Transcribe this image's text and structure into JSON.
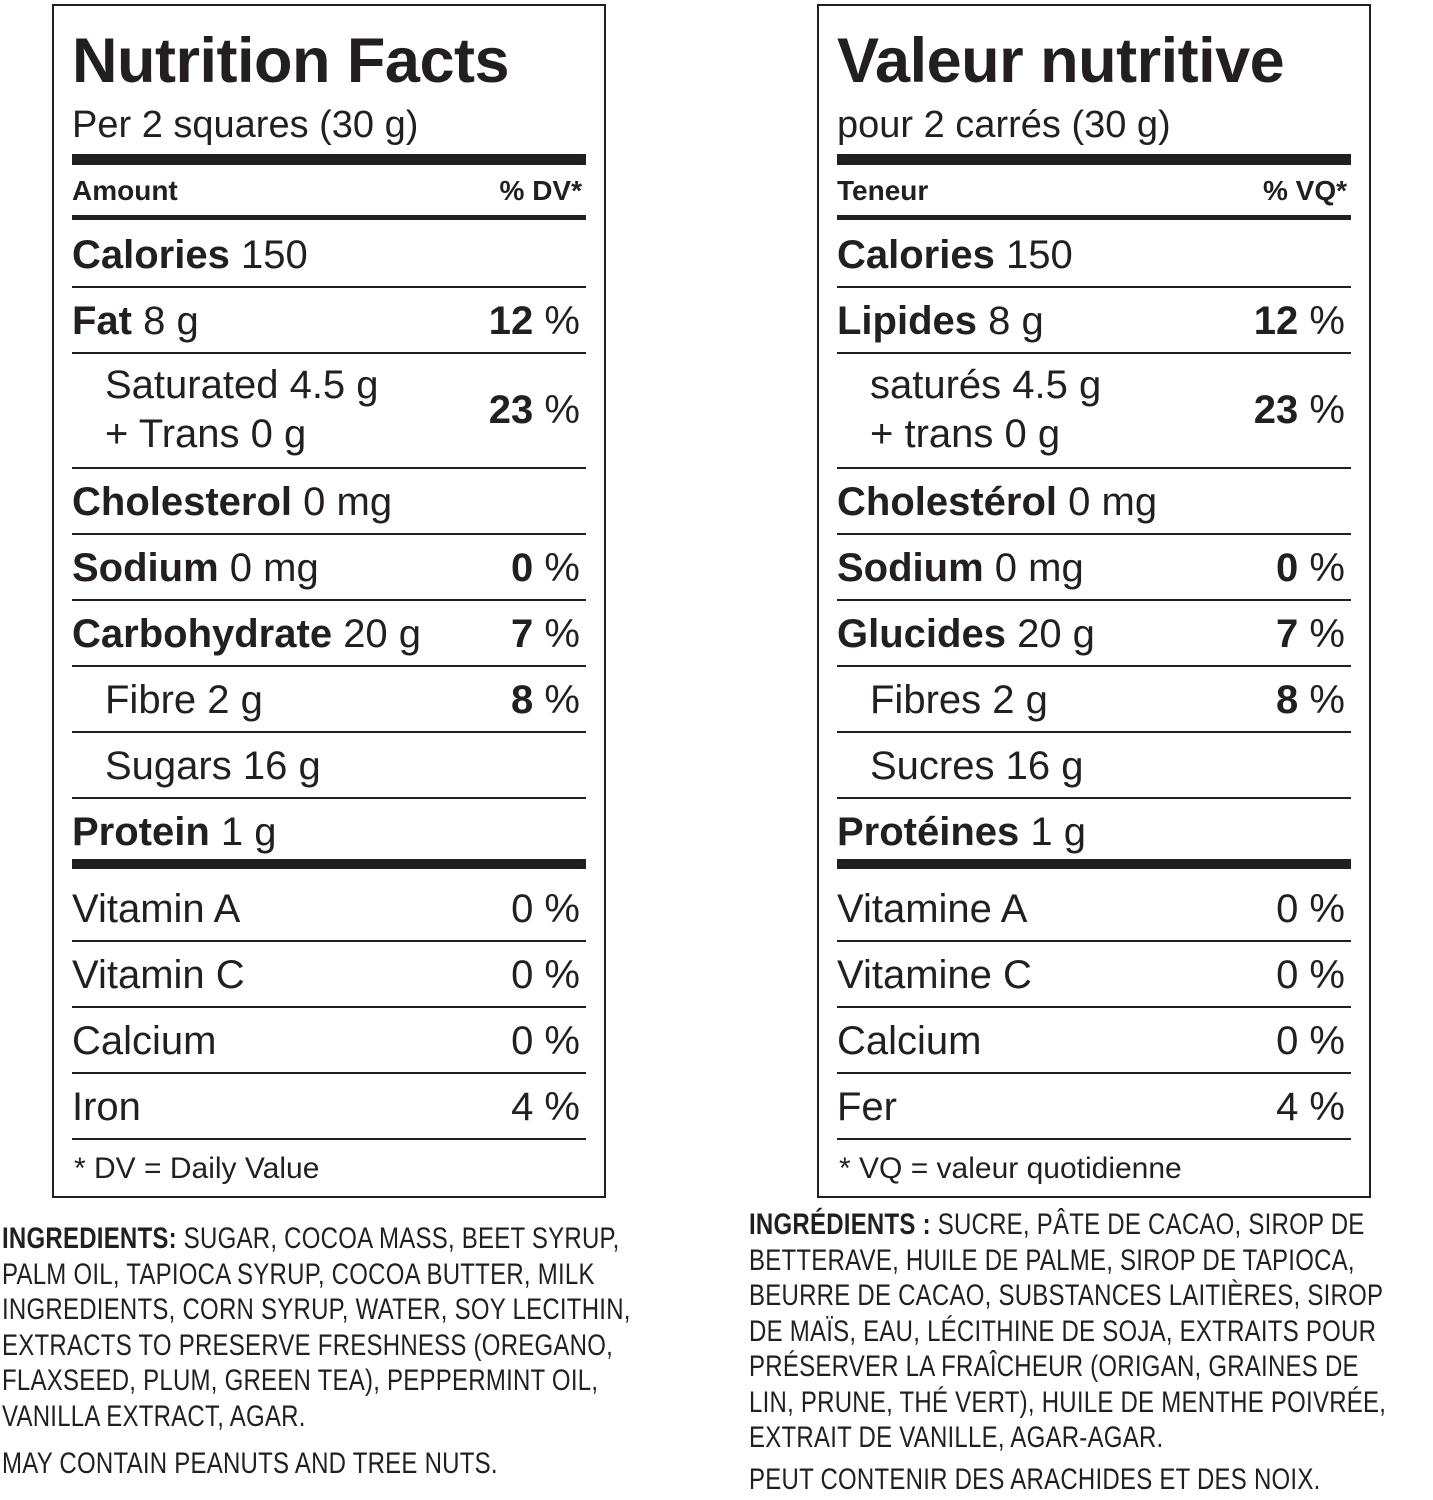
{
  "english": {
    "title": "Nutrition Facts",
    "serving": "Per 2 squares (30 g)",
    "amount_header": "Amount",
    "dv_header": "% DV*",
    "rows": {
      "calories": {
        "label": "Calories",
        "value": "150"
      },
      "fat": {
        "label": "Fat",
        "value": "8 g",
        "dv_num": "12",
        "dv_unit": "%"
      },
      "saturated": {
        "label": "Saturated 4.5 g",
        "label2": "+ Trans 0 g",
        "dv_num": "23",
        "dv_unit": "%"
      },
      "cholesterol": {
        "label": "Cholesterol",
        "value": "0 mg"
      },
      "sodium": {
        "label": "Sodium",
        "value": "0 mg",
        "dv_num": "0",
        "dv_unit": "%"
      },
      "carbohydrate": {
        "label": "Carbohydrate",
        "value": "20 g",
        "dv_num": "7",
        "dv_unit": "%"
      },
      "fibre": {
        "label": "Fibre 2 g",
        "dv_num": "8",
        "dv_unit": "%"
      },
      "sugars": {
        "label": "Sugars 16 g"
      },
      "protein": {
        "label": "Protein",
        "value": "1 g"
      },
      "vitamin_a": {
        "label": "Vitamin A",
        "dv": "0 %"
      },
      "vitamin_c": {
        "label": "Vitamin C",
        "dv": "0 %"
      },
      "calcium": {
        "label": "Calcium",
        "dv": "0 %"
      },
      "iron": {
        "label": "Iron",
        "dv": "4 %"
      }
    },
    "footnote": "* DV = Daily Value",
    "ingredients_label": "INGREDIENTS:",
    "ingredients_text": " SUGAR, COCOA MASS, BEET SYRUP,\nPALM OIL, TAPIOCA SYRUP, COCOA BUTTER, MILK\nINGREDIENTS, CORN SYRUP, WATER, SOY LECITHIN,\nEXTRACTS TO PRESERVE FRESHNESS (OREGANO,\nFLAXSEED, PLUM, GREEN TEA), PEPPERMINT OIL,\nVANILLA EXTRACT, AGAR.",
    "allergen": "MAY CONTAIN PEANUTS AND TREE NUTS."
  },
  "french": {
    "title": "Valeur nutritive",
    "serving": "pour 2 carrés (30 g)",
    "amount_header": "Teneur",
    "dv_header": "% VQ*",
    "rows": {
      "calories": {
        "label": "Calories",
        "value": "150"
      },
      "fat": {
        "label": "Lipides",
        "value": "8 g",
        "dv_num": "12",
        "dv_unit": "%"
      },
      "saturated": {
        "label": "saturés 4.5 g",
        "label2": "+ trans 0 g",
        "dv_num": "23",
        "dv_unit": "%"
      },
      "cholesterol": {
        "label": "Cholestérol",
        "value": "0 mg"
      },
      "sodium": {
        "label": "Sodium",
        "value": "0 mg",
        "dv_num": "0",
        "dv_unit": "%"
      },
      "carbohydrate": {
        "label": "Glucides",
        "value": "20 g",
        "dv_num": "7",
        "dv_unit": "%"
      },
      "fibre": {
        "label": "Fibres 2 g",
        "dv_num": "8",
        "dv_unit": "%"
      },
      "sugars": {
        "label": "Sucres 16 g"
      },
      "protein": {
        "label": "Protéines",
        "value": "1 g"
      },
      "vitamin_a": {
        "label": "Vitamine A",
        "dv": "0 %"
      },
      "vitamin_c": {
        "label": "Vitamine C",
        "dv": "0 %"
      },
      "calcium": {
        "label": "Calcium",
        "dv": "0 %"
      },
      "iron": {
        "label": "Fer",
        "dv": "4 %"
      }
    },
    "footnote": "* VQ = valeur quotidienne",
    "ingredients_label": "INGRÉDIENTS :",
    "ingredients_text": " SUCRE, PÂTE DE CACAO, SIROP DE\nBETTERAVE, HUILE DE PALME, SIROP DE TAPIOCA,\nBEURRE DE CACAO, SUBSTANCES LAITIÈRES, SIROP\nDE MAÏS, EAU, LÉCITHINE DE SOJA, EXTRAITS POUR\nPRÉSERVER LA FRAÎCHEUR (ORIGAN, GRAINES DE\nLIN, PRUNE, THÉ VERT), HUILE DE MENTHE POIVRÉE,\nEXTRAIT DE VANILLE, AGAR-AGAR.",
    "allergen": "PEUT CONTENIR DES ARACHIDES ET DES NOIX."
  }
}
